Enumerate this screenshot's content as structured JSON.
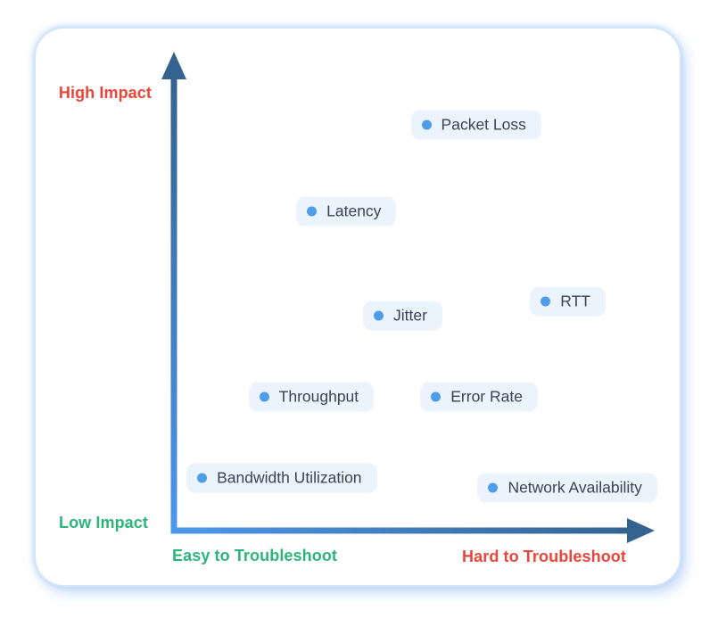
{
  "chart_data": {
    "type": "scatter",
    "x_axis": {
      "label_low": "Easy to Troubleshoot",
      "label_high": "Hard to Troubleshoot",
      "range": [
        0,
        1
      ]
    },
    "y_axis": {
      "label_low": "Low Impact",
      "label_high": "High Impact",
      "range": [
        0,
        1
      ]
    },
    "points": [
      {
        "label": "Packet Loss",
        "x": 0.53,
        "y": 0.85
      },
      {
        "label": "Latency",
        "x": 0.29,
        "y": 0.67
      },
      {
        "label": "Jitter",
        "x": 0.43,
        "y": 0.45
      },
      {
        "label": "RTT",
        "x": 0.78,
        "y": 0.48
      },
      {
        "label": "Throughput",
        "x": 0.19,
        "y": 0.28
      },
      {
        "label": "Error Rate",
        "x": 0.55,
        "y": 0.28
      },
      {
        "label": "Bandwidth Utilization",
        "x": 0.06,
        "y": 0.11
      },
      {
        "label": "Network Availability",
        "x": 0.67,
        "y": 0.09
      }
    ],
    "legend": "none",
    "grid": false,
    "colors": {
      "point_dot": "#4d9de9",
      "pill_background": "#ebf3fd",
      "pill_text": "#3b4352",
      "axis_gradient_start": "#4e97ea",
      "axis_gradient_end": "#35638f",
      "high_impact_label": "#e9453b",
      "low_impact_label": "#2db37d",
      "easy_label": "#2db37d",
      "hard_label": "#e9453b"
    }
  }
}
